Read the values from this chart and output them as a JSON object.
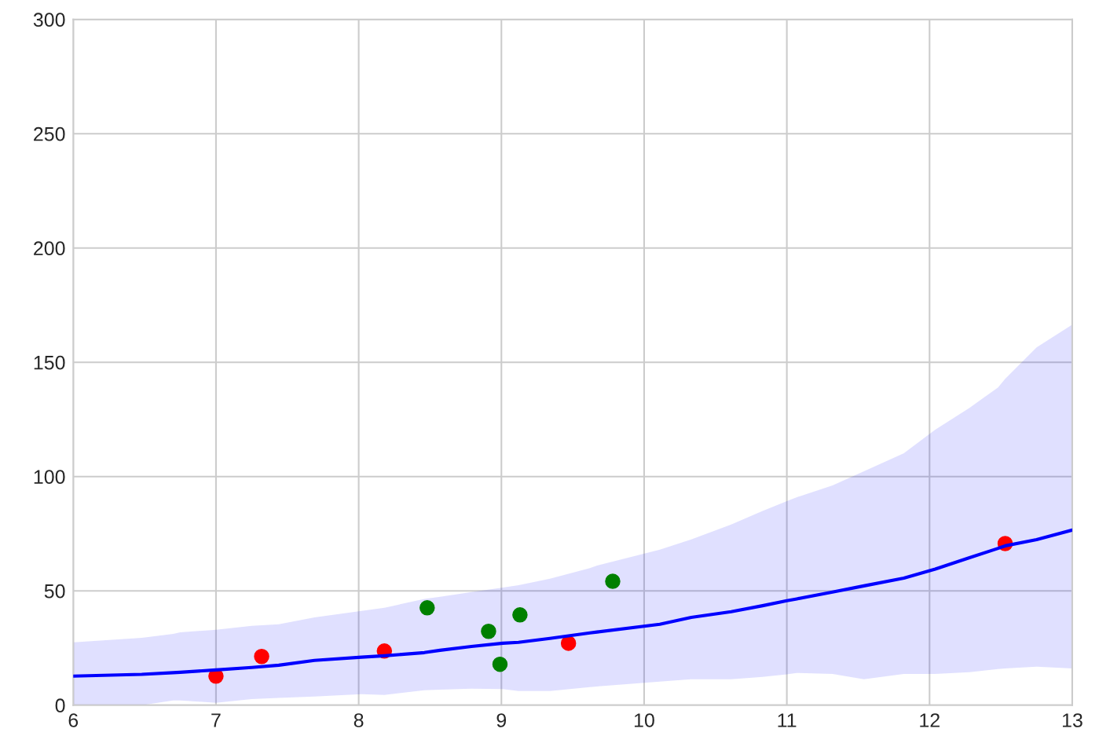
{
  "chart_data": {
    "type": "line",
    "xlim": [
      6,
      13
    ],
    "ylim": [
      0,
      300
    ],
    "xticks": [
      6,
      7,
      8,
      9,
      10,
      11,
      12,
      13
    ],
    "yticks": [
      0,
      50,
      100,
      150,
      200,
      250,
      300
    ],
    "grid": true,
    "series": [
      {
        "color": "#0000ff",
        "marker": "none",
        "x": [
          6,
          6.48,
          6.7,
          6.75,
          7,
          7.25,
          7.44,
          7.69,
          8.02,
          8.18,
          8.46,
          8.57,
          8.79,
          9.01,
          9.12,
          9.34,
          9.62,
          9.67,
          10.11,
          10.33,
          10.61,
          10.83,
          11,
          11.07,
          11.32,
          11.54,
          11.82,
          12.04,
          12.28,
          12.48,
          12.53,
          12.75,
          13
        ],
        "values": [
          12.7,
          13.5,
          14.2,
          14.4,
          15.4,
          16.5,
          17.5,
          19.6,
          21.0,
          21.6,
          23.0,
          24.0,
          25.7,
          27.1,
          27.5,
          29.2,
          31.6,
          32.0,
          35.4,
          38.4,
          40.9,
          43.5,
          45.7,
          46.5,
          49.5,
          52.2,
          55.6,
          59.5,
          64.5,
          68.6,
          69.7,
          72.4,
          76.6
        ],
        "lower": [
          0,
          0,
          2.1,
          2.1,
          1,
          2.7,
          3.2,
          3.8,
          4.8,
          4.5,
          6.5,
          6.8,
          7.2,
          7.0,
          6.2,
          6.2,
          7.9,
          8.2,
          10.3,
          11.3,
          11.3,
          12.4,
          13.5,
          14.1,
          13.7,
          11.3,
          13.7,
          13.7,
          14.4,
          15.8,
          16.1,
          16.8,
          16.1
        ],
        "upper": [
          27.5,
          29.5,
          31.2,
          31.9,
          33,
          34.7,
          35.4,
          38.4,
          41.2,
          42.6,
          46.5,
          47.4,
          49.5,
          51.5,
          52.5,
          55.3,
          60,
          61.1,
          68,
          72.5,
          79,
          85,
          89.3,
          91,
          96.1,
          102.3,
          110.2,
          120.5,
          130.1,
          139,
          142.8,
          156.5,
          166.5
        ]
      },
      {
        "type": "scatter",
        "color": "#ff0000",
        "marker": "circle",
        "x": [
          7.0,
          7.32,
          8.18,
          9.47,
          12.53
        ],
        "values": [
          12.7,
          21.3,
          23.7,
          27.1,
          70.7
        ]
      },
      {
        "type": "scatter",
        "color": "#008000",
        "marker": "circle",
        "x": [
          8.48,
          8.91,
          8.99,
          9.13,
          9.78
        ],
        "values": [
          42.6,
          32.3,
          17.9,
          39.5,
          54.2
        ]
      }
    ]
  }
}
